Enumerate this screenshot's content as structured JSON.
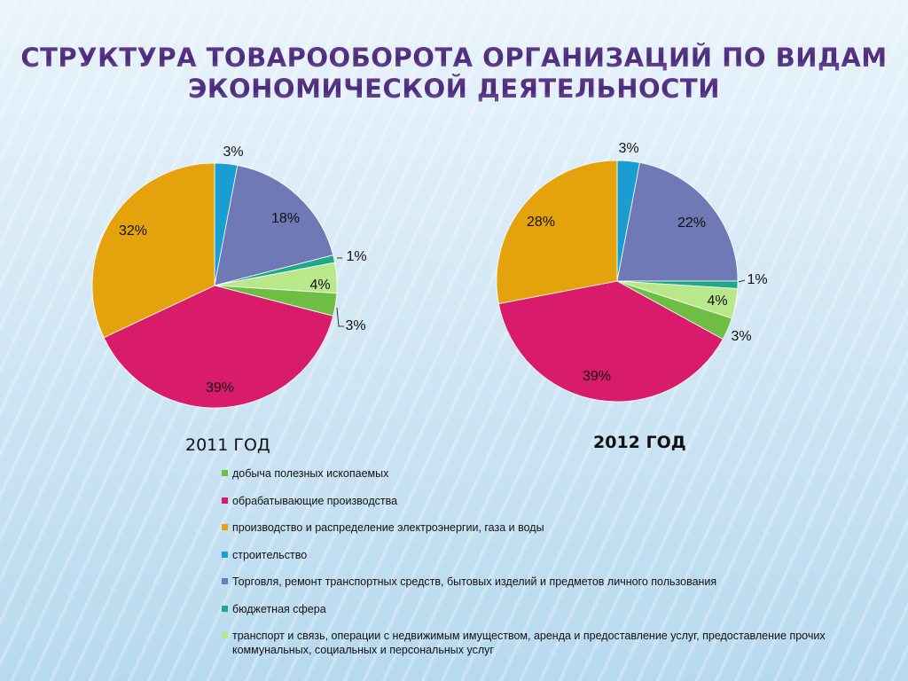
{
  "title": {
    "line1": "СТРУКТУРА ТОВАРООБОРОТА ОРГАНИЗАЦИЙ ПО ВИДАМ",
    "line2": "ЭКОНОМИЧЕСКОЙ ДЕЯТЕЛЬНОСТИ"
  },
  "legend": [
    {
      "label": "добыча полезных ископаемых",
      "color": "#6fbe44"
    },
    {
      "label": "обрабатывающие производства",
      "color": "#d81b6a"
    },
    {
      "label": "производство и распределение электроэнергии, газа и воды",
      "color": "#e4a20c"
    },
    {
      "label": "строительство",
      "color": "#1a9ed1"
    },
    {
      "label": "Торговля, ремонт транспортных средств, бытовых изделий и предметов личного пользования",
      "color": "#6f79b5"
    },
    {
      "label": "бюджетная сфера",
      "color": "#1fa88a"
    },
    {
      "label": "транспорт и связь, операции с недвижимым имуществом, аренда и предоставление услуг, предоставление прочих коммунальных, социальных и персональных услуг",
      "color": "#b8e88a"
    }
  ],
  "chart_data": [
    {
      "type": "pie",
      "title": "2011 ГОД",
      "slices": [
        {
          "category": "строительство",
          "value": 3,
          "label": "3%"
        },
        {
          "category": "Торговля, ремонт транспортных средств, бытовых изделий и предметов личного пользования",
          "value": 18,
          "label": "18%"
        },
        {
          "category": "бюджетная сфера",
          "value": 1,
          "label": "1%"
        },
        {
          "category": "транспорт и связь, операции с недвижимым имуществом, аренда и предоставление услуг, предоставление прочих коммунальных, социальных и персональных услуг",
          "value": 4,
          "label": "4%"
        },
        {
          "category": "добыча полезных ископаемых",
          "value": 3,
          "label": "3%"
        },
        {
          "category": "обрабатывающие производства",
          "value": 39,
          "label": "39%"
        },
        {
          "category": "производство и распределение электроэнергии, газа и воды",
          "value": 32,
          "label": "32%"
        }
      ]
    },
    {
      "type": "pie",
      "title": "2012 ГОД",
      "slices": [
        {
          "category": "строительство",
          "value": 3,
          "label": "3%"
        },
        {
          "category": "Торговля, ремонт транспортных средств, бытовых изделий и предметов личного пользования",
          "value": 22,
          "label": "22%"
        },
        {
          "category": "бюджетная сфера",
          "value": 1,
          "label": "1%"
        },
        {
          "category": "транспорт и связь, операции с недвижимым имуществом, аренда и предоставление услуг, предоставление прочих коммунальных, социальных и персональных услуг",
          "value": 4,
          "label": "4%"
        },
        {
          "category": "добыча полезных ископаемых",
          "value": 3,
          "label": "3%"
        },
        {
          "category": "обрабатывающие производства",
          "value": 39,
          "label": "39%"
        },
        {
          "category": "производство и распределение электроэнергии, газа и воды",
          "value": 28,
          "label": "28%"
        }
      ]
    }
  ]
}
